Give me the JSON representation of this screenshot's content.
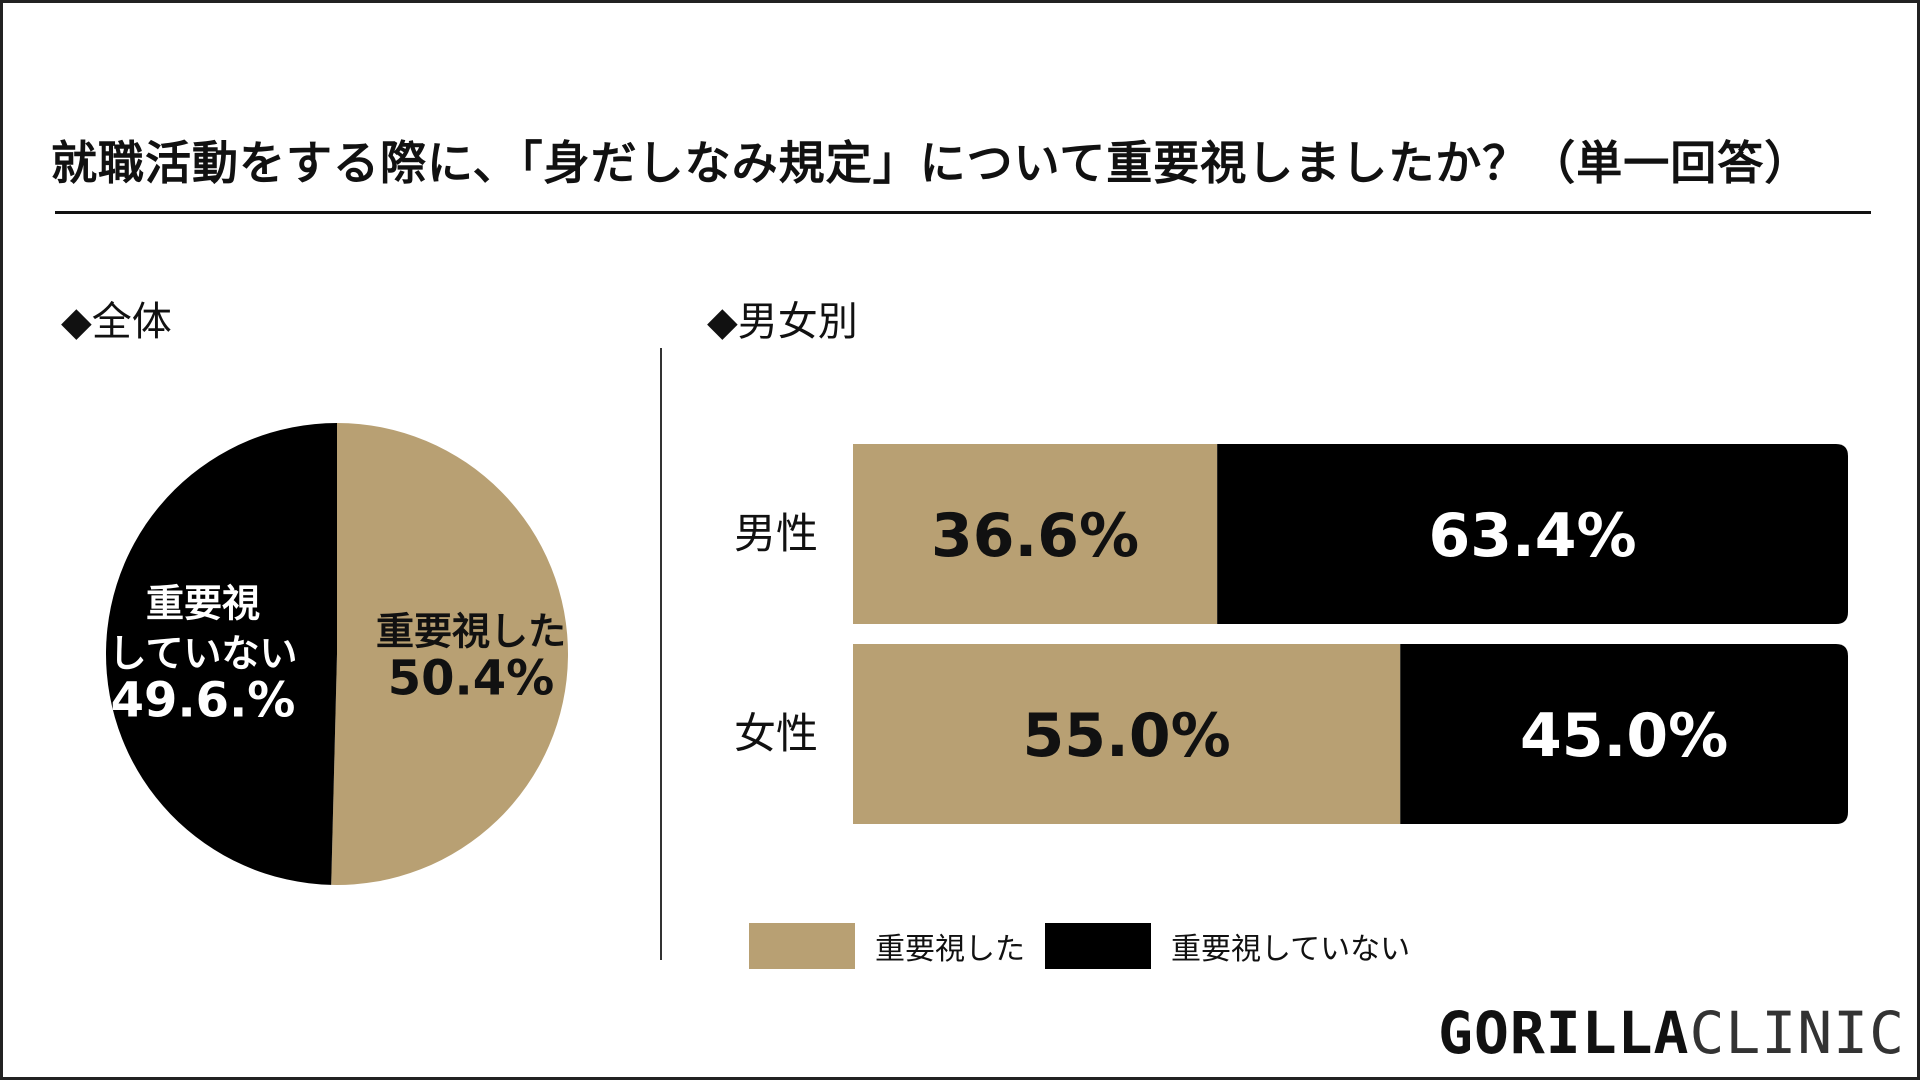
{
  "title": "就職活動をする際に、「身だしなみ規定」について重要視しましたか？（単一回答）",
  "sections": {
    "overall": "◆全体",
    "by_gender": "◆男女別"
  },
  "colors": {
    "important": "#b8a073",
    "not_important": "#000000"
  },
  "legend": [
    {
      "label": "重要視した",
      "color": "#b8a073"
    },
    {
      "label": "重要視していない",
      "color": "#000000"
    }
  ],
  "brand": {
    "bold": "GORILLA",
    "light": "CLINIC"
  },
  "chart_data": [
    {
      "type": "pie",
      "slices": [
        {
          "label_lines": [
            "重要視した",
            "50.4%"
          ],
          "category": "重要視した",
          "value": 50.4,
          "color": "#b8a073",
          "text_color": "#111111"
        },
        {
          "label_lines": [
            "重要視",
            "していない",
            "49.6.%"
          ],
          "category": "重要視していない",
          "value": 49.6,
          "color": "#000000",
          "text_color": "#ffffff"
        }
      ]
    },
    {
      "type": "bar",
      "orientation": "horizontal",
      "stacked": true,
      "categories": [
        "男性",
        "女性"
      ],
      "xlim": [
        0,
        100
      ],
      "series": [
        {
          "name": "重要視した",
          "color": "#b8a073",
          "text_color": "#111111",
          "values": [
            36.6,
            55.0
          ],
          "labels": [
            "36.6%",
            "55.0%"
          ]
        },
        {
          "name": "重要視していない",
          "color": "#000000",
          "text_color": "#ffffff",
          "values": [
            63.4,
            45.0
          ],
          "labels": [
            "63.4%",
            "45.0%"
          ]
        }
      ]
    }
  ]
}
